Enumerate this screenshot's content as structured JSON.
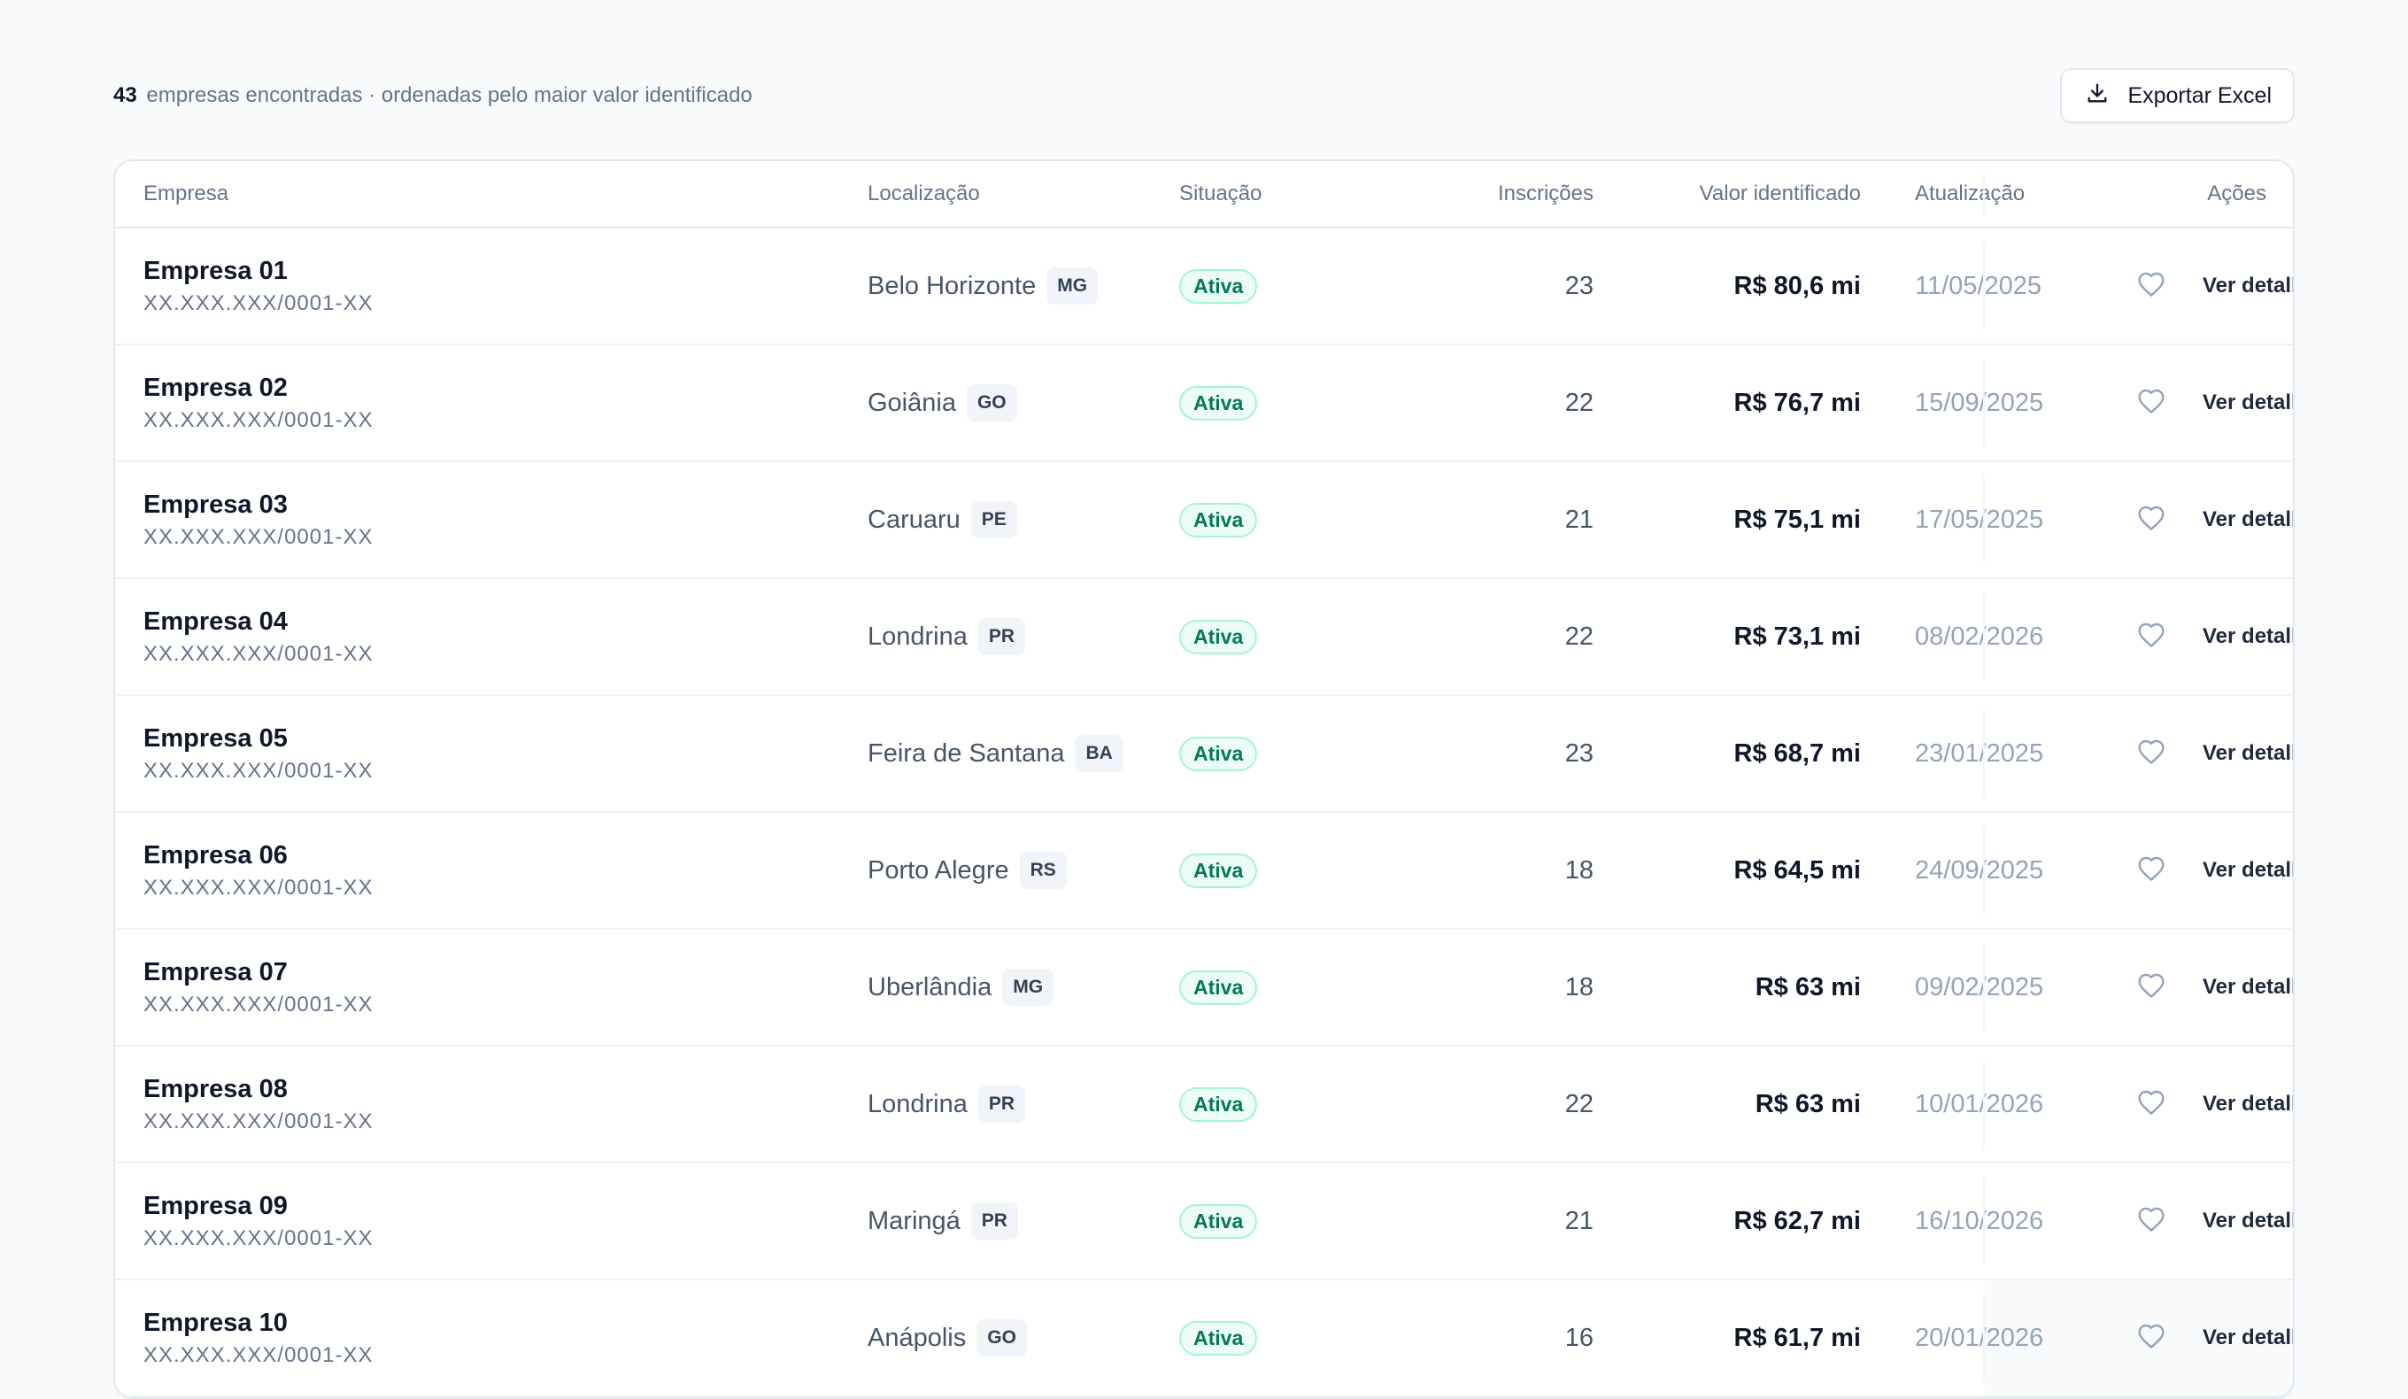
{
  "summary": {
    "count": "43",
    "text": "empresas encontradas · ordenadas pelo maior valor identificado"
  },
  "export_button": {
    "label": "Exportar Excel",
    "icon": "download-icon"
  },
  "table": {
    "headers": {
      "empresa": "Empresa",
      "localizacao": "Localização",
      "situacao": "Situação",
      "inscricoes": "Inscrições",
      "valor": "Valor identificado",
      "atualizacao": "Atualização",
      "acoes": "Ações"
    },
    "rows": [
      {
        "name": "Empresa 01",
        "cnpj": "XX.XXX.XXX/0001-XX",
        "city": "Belo Horizonte",
        "uf": "MG",
        "status": "Ativa",
        "inscricoes": "23",
        "valor": "R$ 80,6 mi",
        "atualizacao": "11/05/2025",
        "action": "Ver detalhes"
      },
      {
        "name": "Empresa 02",
        "cnpj": "XX.XXX.XXX/0001-XX",
        "city": "Goiânia",
        "uf": "GO",
        "status": "Ativa",
        "inscricoes": "22",
        "valor": "R$ 76,7 mi",
        "atualizacao": "15/09/2025",
        "action": "Ver detalhes"
      },
      {
        "name": "Empresa 03",
        "cnpj": "XX.XXX.XXX/0001-XX",
        "city": "Caruaru",
        "uf": "PE",
        "status": "Ativa",
        "inscricoes": "21",
        "valor": "R$ 75,1 mi",
        "atualizacao": "17/05/2025",
        "action": "Ver detalhes"
      },
      {
        "name": "Empresa 04",
        "cnpj": "XX.XXX.XXX/0001-XX",
        "city": "Londrina",
        "uf": "PR",
        "status": "Ativa",
        "inscricoes": "22",
        "valor": "R$ 73,1 mi",
        "atualizacao": "08/02/2026",
        "action": "Ver detalhes"
      },
      {
        "name": "Empresa 05",
        "cnpj": "XX.XXX.XXX/0001-XX",
        "city": "Feira de Santana",
        "uf": "BA",
        "status": "Ativa",
        "inscricoes": "23",
        "valor": "R$ 68,7 mi",
        "atualizacao": "23/01/2025",
        "action": "Ver detalhes"
      },
      {
        "name": "Empresa 06",
        "cnpj": "XX.XXX.XXX/0001-XX",
        "city": "Porto Alegre",
        "uf": "RS",
        "status": "Ativa",
        "inscricoes": "18",
        "valor": "R$ 64,5 mi",
        "atualizacao": "24/09/2025",
        "action": "Ver detalhes"
      },
      {
        "name": "Empresa 07",
        "cnpj": "XX.XXX.XXX/0001-XX",
        "city": "Uberlândia",
        "uf": "MG",
        "status": "Ativa",
        "inscricoes": "18",
        "valor": "R$ 63 mi",
        "atualizacao": "09/02/2025",
        "action": "Ver detalhes"
      },
      {
        "name": "Empresa 08",
        "cnpj": "XX.XXX.XXX/0001-XX",
        "city": "Londrina",
        "uf": "PR",
        "status": "Ativa",
        "inscricoes": "22",
        "valor": "R$ 63 mi",
        "atualizacao": "10/01/2026",
        "action": "Ver detalhes"
      },
      {
        "name": "Empresa 09",
        "cnpj": "XX.XXX.XXX/0001-XX",
        "city": "Maringá",
        "uf": "PR",
        "status": "Ativa",
        "inscricoes": "21",
        "valor": "R$ 62,7 mi",
        "atualizacao": "16/10/2026",
        "action": "Ver detalhes"
      },
      {
        "name": "Empresa 10",
        "cnpj": "XX.XXX.XXX/0001-XX",
        "city": "Anápolis",
        "uf": "GO",
        "status": "Ativa",
        "inscricoes": "16",
        "valor": "R$ 61,7 mi",
        "atualizacao": "20/01/2026",
        "action": "Ver detalhes"
      }
    ]
  },
  "colors": {
    "background": "#f8fafc",
    "status_active": "#047857",
    "status_active_bg": "#ecfdf5",
    "border": "#e2e8f0"
  },
  "icons": {
    "favorite": "heart-icon",
    "details": "arrow-right-icon"
  }
}
